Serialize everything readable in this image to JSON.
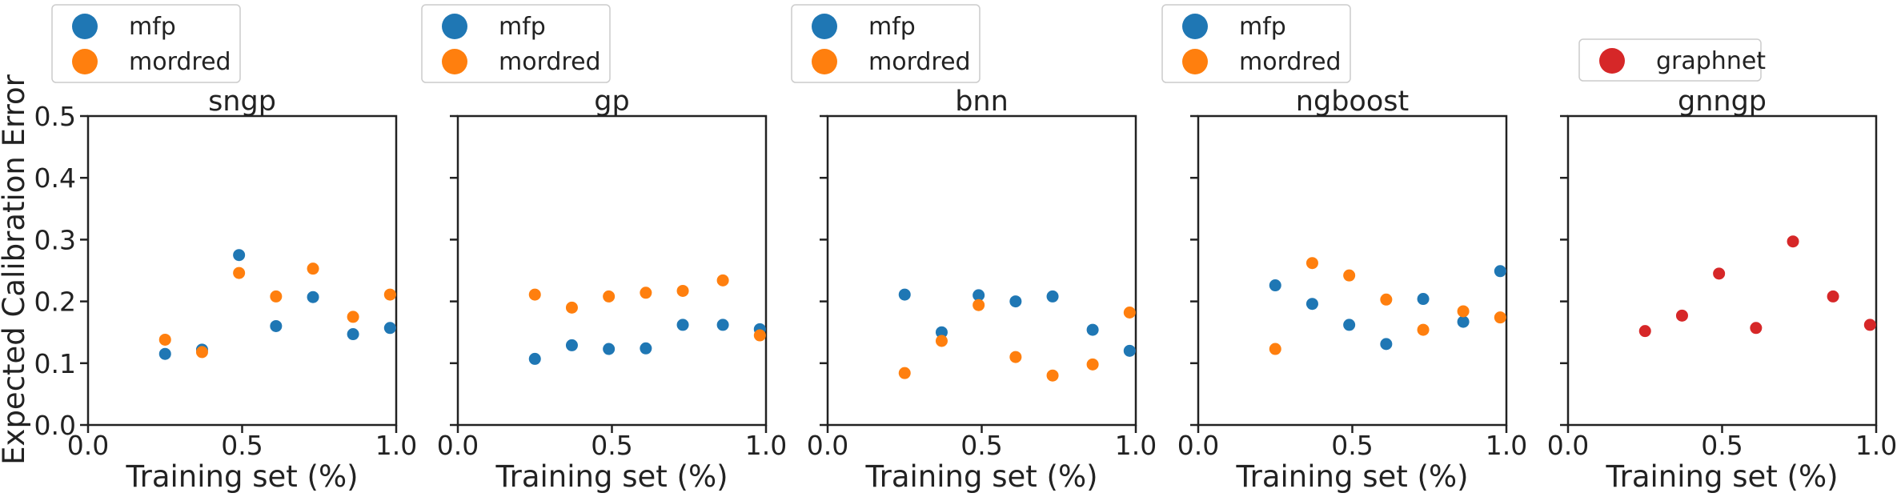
{
  "chart_data": {
    "type": "scatter",
    "ylabel": "Expected Calibration Error",
    "xlabel": "Training set (%)",
    "xlim": [
      0.0,
      1.0
    ],
    "ylim": [
      0.0,
      0.5
    ],
    "xticks": [
      "0.0",
      "0.5",
      "1.0"
    ],
    "yticks": [
      "0.0",
      "0.1",
      "0.2",
      "0.3",
      "0.4",
      "0.5"
    ],
    "legend_placement": "above each panel",
    "grid": false,
    "colors": {
      "mfp": "#1f77b4",
      "mordred": "#ff7f0e",
      "graphnet": "#d62728"
    },
    "panels": [
      {
        "title": "sngp",
        "series": [
          {
            "name": "mfp",
            "color": "#1f77b4",
            "x": [
              0.25,
              0.37,
              0.49,
              0.61,
              0.73,
              0.86,
              0.98
            ],
            "y": [
              0.115,
              0.122,
              0.275,
              0.16,
              0.207,
              0.147,
              0.157
            ]
          },
          {
            "name": "mordred",
            "color": "#ff7f0e",
            "x": [
              0.25,
              0.37,
              0.49,
              0.61,
              0.73,
              0.86,
              0.98
            ],
            "y": [
              0.138,
              0.118,
              0.246,
              0.208,
              0.253,
              0.175,
              0.211
            ]
          }
        ]
      },
      {
        "title": "gp",
        "series": [
          {
            "name": "mfp",
            "color": "#1f77b4",
            "x": [
              0.25,
              0.37,
              0.49,
              0.61,
              0.73,
              0.86,
              0.98
            ],
            "y": [
              0.107,
              0.129,
              0.123,
              0.124,
              0.162,
              0.162,
              0.155
            ]
          },
          {
            "name": "mordred",
            "color": "#ff7f0e",
            "x": [
              0.25,
              0.37,
              0.49,
              0.61,
              0.73,
              0.86,
              0.98
            ],
            "y": [
              0.211,
              0.19,
              0.208,
              0.214,
              0.217,
              0.234,
              0.145
            ]
          }
        ]
      },
      {
        "title": "bnn",
        "series": [
          {
            "name": "mfp",
            "color": "#1f77b4",
            "x": [
              0.25,
              0.37,
              0.49,
              0.61,
              0.73,
              0.86,
              0.98
            ],
            "y": [
              0.211,
              0.15,
              0.21,
              0.2,
              0.208,
              0.154,
              0.12
            ]
          },
          {
            "name": "mordred",
            "color": "#ff7f0e",
            "x": [
              0.25,
              0.37,
              0.49,
              0.61,
              0.73,
              0.86,
              0.98
            ],
            "y": [
              0.084,
              0.136,
              0.194,
              0.11,
              0.08,
              0.098,
              0.182
            ]
          }
        ]
      },
      {
        "title": "ngboost",
        "series": [
          {
            "name": "mfp",
            "color": "#1f77b4",
            "x": [
              0.25,
              0.37,
              0.49,
              0.61,
              0.73,
              0.86,
              0.98
            ],
            "y": [
              0.226,
              0.196,
              0.162,
              0.131,
              0.204,
              0.167,
              0.249
            ]
          },
          {
            "name": "mordred",
            "color": "#ff7f0e",
            "x": [
              0.25,
              0.37,
              0.49,
              0.61,
              0.73,
              0.86,
              0.98
            ],
            "y": [
              0.123,
              0.262,
              0.242,
              0.203,
              0.154,
              0.184,
              0.174
            ]
          }
        ]
      },
      {
        "title": "gnngp",
        "series": [
          {
            "name": "graphnet",
            "color": "#d62728",
            "x": [
              0.25,
              0.37,
              0.49,
              0.61,
              0.73,
              0.86,
              0.98
            ],
            "y": [
              0.152,
              0.177,
              0.245,
              0.157,
              0.297,
              0.208,
              0.162
            ]
          }
        ]
      }
    ]
  }
}
